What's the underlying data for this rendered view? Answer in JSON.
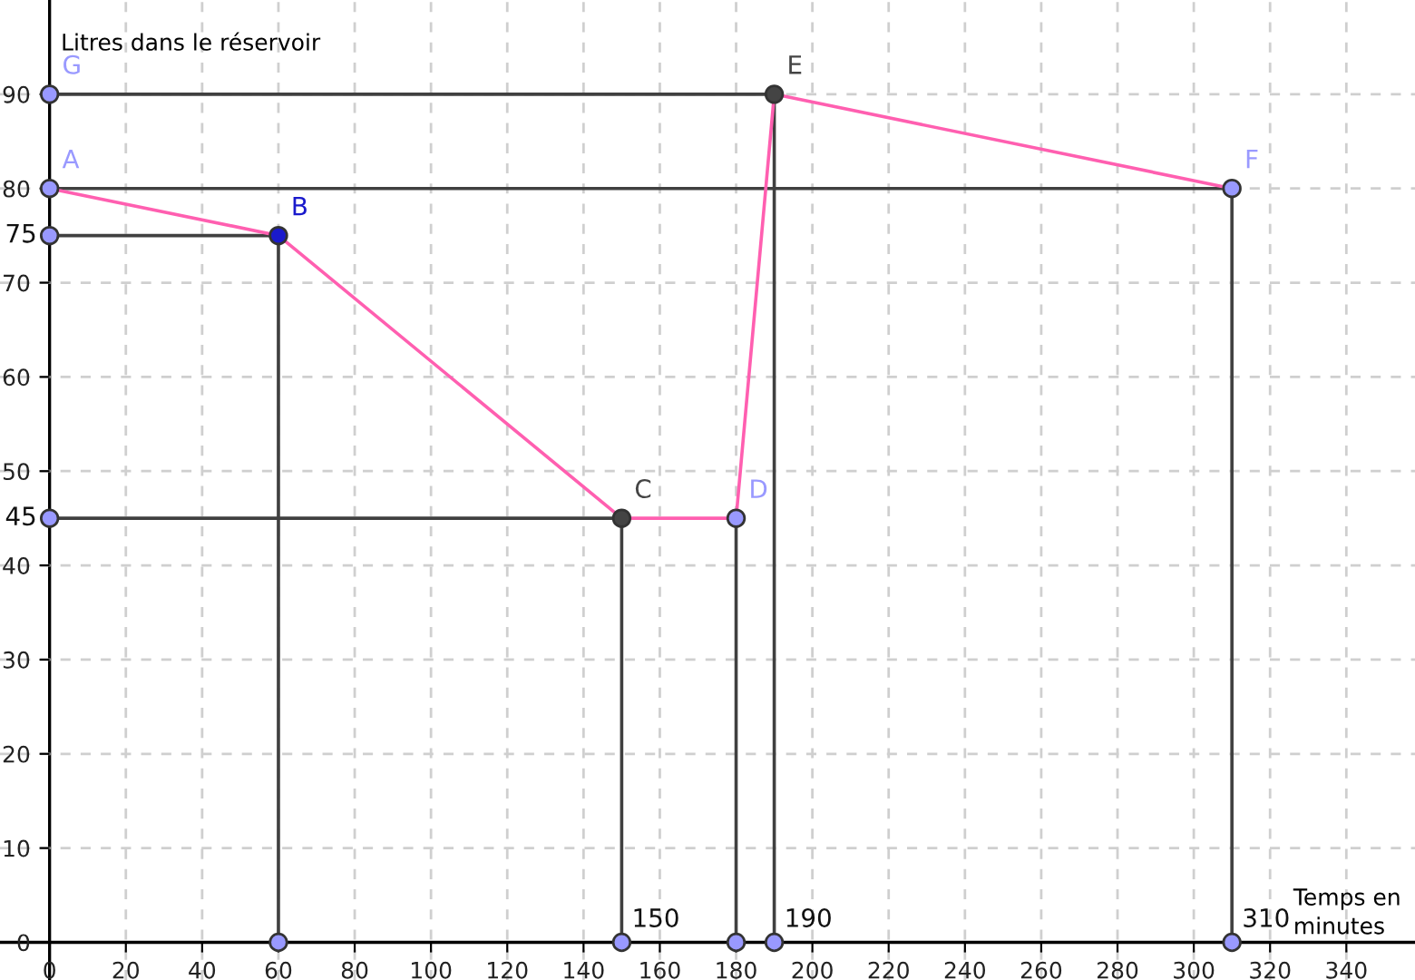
{
  "chart_data": {
    "type": "line",
    "xlabel": "Temps en\nminutes",
    "ylabel": "Litres dans le réservoir",
    "xlim": [
      -13,
      358
    ],
    "ylim": [
      -4,
      100
    ],
    "xticks": [
      0,
      20,
      40,
      60,
      80,
      100,
      120,
      140,
      160,
      180,
      200,
      220,
      240,
      260,
      280,
      300,
      320,
      340
    ],
    "yticks": [
      0,
      10,
      20,
      30,
      40,
      50,
      60,
      70,
      80,
      90
    ],
    "grid": true,
    "series": [
      {
        "color": "#404040",
        "x": [
          0,
          190,
          190
        ],
        "values": [
          90,
          90,
          0
        ]
      },
      {
        "color": "#404040",
        "x": [
          0,
          310,
          310
        ],
        "values": [
          80,
          80,
          0
        ]
      },
      {
        "color": "#404040",
        "x": [
          0,
          60,
          60
        ],
        "values": [
          75,
          75,
          0
        ]
      },
      {
        "color": "#404040",
        "x": [
          0,
          150,
          150
        ],
        "values": [
          45,
          45,
          0
        ]
      },
      {
        "color": "#404040",
        "x": [
          180,
          180
        ],
        "values": [
          45,
          0
        ]
      },
      {
        "color": "#ff5fb0",
        "x": [
          0,
          60,
          150,
          180,
          190,
          310
        ],
        "values": [
          80,
          75,
          45,
          45,
          90,
          80
        ]
      },
      {
        "type": "scatter",
        "marker": "circle",
        "color": "#9999ff",
        "x": [
          0,
          0,
          60,
          150,
          180,
          190,
          310
        ],
        "values": [
          75,
          45,
          0,
          0,
          0,
          0,
          0
        ]
      },
      {
        "type": "scatter",
        "marker": "circle",
        "name": "A",
        "color": "#9999ff",
        "x": [
          0
        ],
        "values": [
          80
        ]
      },
      {
        "type": "scatter",
        "marker": "circle",
        "name": "B",
        "color": "#1a1acc",
        "x": [
          60
        ],
        "values": [
          75
        ]
      },
      {
        "type": "scatter",
        "marker": "circle",
        "name": "C",
        "color": "#444444",
        "x": [
          150
        ],
        "values": [
          45
        ]
      },
      {
        "type": "scatter",
        "marker": "circle",
        "name": "D",
        "color": "#9999ff",
        "x": [
          180
        ],
        "values": [
          45
        ]
      },
      {
        "type": "scatter",
        "marker": "circle",
        "name": "E",
        "color": "#444444",
        "x": [
          190
        ],
        "values": [
          90
        ]
      },
      {
        "type": "scatter",
        "marker": "circle",
        "name": "F",
        "color": "#9999ff",
        "x": [
          310
        ],
        "values": [
          80
        ]
      },
      {
        "type": "scatter",
        "marker": "circle",
        "name": "G",
        "color": "#9999ff",
        "x": [
          0
        ],
        "values": [
          90
        ]
      }
    ],
    "annotations": [
      {
        "text": "75",
        "x": 0,
        "y": 75
      },
      {
        "text": "45",
        "x": 0,
        "y": 45
      },
      {
        "text": "150",
        "x": 150,
        "y": 0
      },
      {
        "text": "190",
        "x": 190,
        "y": 0
      },
      {
        "text": "310",
        "x": 310,
        "y": 0
      }
    ]
  }
}
